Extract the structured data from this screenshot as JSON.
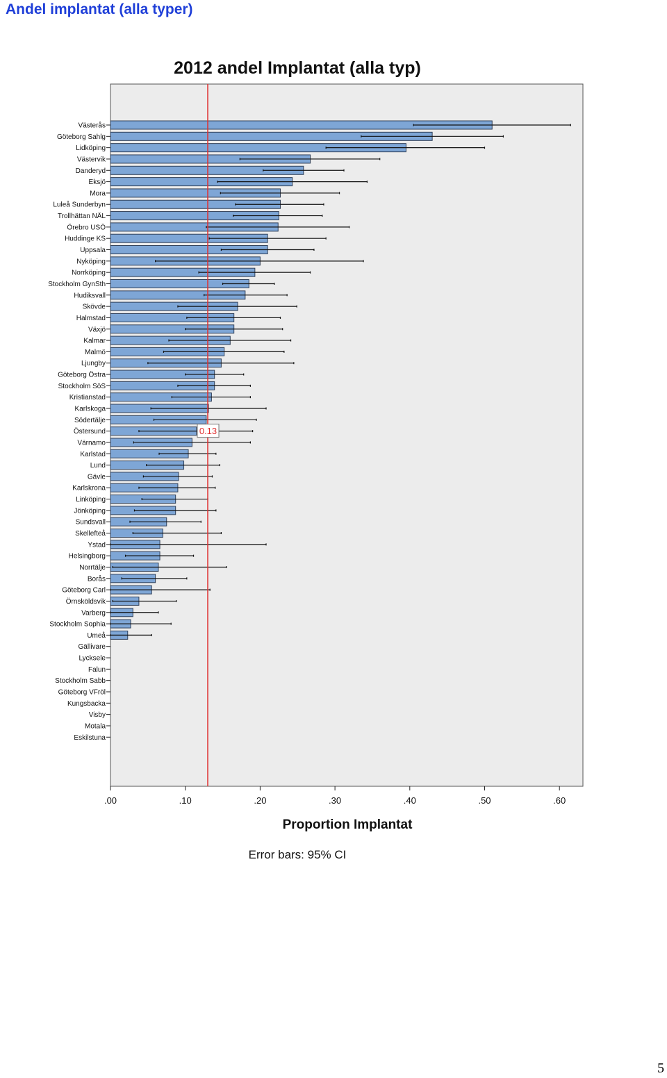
{
  "document": {
    "heading": "Andel implantat (alla typer)",
    "page_number": "5"
  },
  "colors": {
    "bar_fill": "#7ea6d6",
    "bar_stroke": "#2f3f58",
    "plot_background": "#ececec",
    "reference_line": "#e03030",
    "heading": "#1f3fd8"
  },
  "chart_data": {
    "type": "bar",
    "orientation": "horizontal",
    "title": "2012 andel Implantat (alla typ)",
    "xlabel": "Proportion Implantat",
    "ylabel": "",
    "note": "Error bars: 95% CI",
    "xlim": [
      0,
      0.63
    ],
    "x_ticks": [
      ".00",
      ".10",
      ".20",
      ".30",
      ".40",
      ".50",
      ".60"
    ],
    "grid": false,
    "reference_line": {
      "value": 0.13,
      "label": "0.13"
    },
    "categories": [
      "Västerås",
      "Göteborg Sahlg",
      "Lidköping",
      "Västervik",
      "Danderyd",
      "Eksjö",
      "Mora",
      "Luleå Sunderbyn",
      "Trollhättan NÄL",
      "Örebro USÖ",
      "Huddinge KS",
      "Uppsala",
      "Nyköping",
      "Norrköping",
      "Stockholm GynSth",
      "Hudiksvall",
      "Skövde",
      "Halmstad",
      "Växjö",
      "Kalmar",
      "Malmö",
      "Ljungby",
      "Göteborg Östra",
      "Stockholm SöS",
      "Kristianstad",
      "Karlskoga",
      "Södertälje",
      "Östersund",
      "Värnamo",
      "Karlstad",
      "Lund",
      "Gävle",
      "Karlskrona",
      "Linköping",
      "Jönköping",
      "Sundsvall",
      "Skellefteå",
      "Ystad",
      "Helsingborg",
      "Norrtälje",
      "Borås",
      "Göteborg Carl",
      "Örnsköldsvik",
      "Varberg",
      "Stockholm Sophia",
      "Umeå",
      "Gällivare",
      "Lycksele",
      "Falun",
      "Stockholm Sabb",
      "Göteborg VFröl",
      "Kungsbacka",
      "Visby",
      "Motala",
      "Eskilstuna"
    ],
    "values": [
      0.51,
      0.43,
      0.395,
      0.267,
      0.258,
      0.243,
      0.227,
      0.227,
      0.225,
      0.224,
      0.21,
      0.21,
      0.2,
      0.193,
      0.185,
      0.18,
      0.17,
      0.165,
      0.165,
      0.16,
      0.152,
      0.148,
      0.139,
      0.139,
      0.135,
      0.131,
      0.128,
      0.115,
      0.109,
      0.104,
      0.098,
      0.091,
      0.09,
      0.087,
      0.087,
      0.075,
      0.07,
      0.066,
      0.066,
      0.064,
      0.06,
      0.055,
      0.038,
      0.03,
      0.027,
      0.023,
      0,
      0,
      0,
      0,
      0,
      0,
      0,
      0,
      0
    ],
    "ci_lower": [
      0.405,
      0.335,
      0.288,
      0.173,
      0.204,
      0.143,
      0.147,
      0.167,
      0.164,
      0.128,
      0.132,
      0.148,
      0.06,
      0.118,
      0.15,
      0.125,
      0.09,
      0.102,
      0.1,
      0.078,
      0.071,
      0.05,
      0.1,
      0.09,
      0.082,
      0.054,
      0.058,
      0.038,
      0.031,
      0.065,
      0.048,
      0.044,
      0.038,
      0.042,
      0.032,
      0.026,
      0.03,
      0,
      0.02,
      0.003,
      0.015,
      0,
      0.003,
      0,
      0,
      0,
      0,
      0,
      0,
      0,
      0,
      0,
      0,
      0,
      0
    ],
    "ci_upper": [
      0.615,
      0.525,
      0.5,
      0.36,
      0.312,
      0.343,
      0.306,
      0.285,
      0.283,
      0.319,
      0.288,
      0.272,
      0.338,
      0.267,
      0.219,
      0.236,
      0.249,
      0.227,
      0.23,
      0.241,
      0.232,
      0.245,
      0.178,
      0.187,
      0.187,
      0.208,
      0.195,
      0.19,
      0.187,
      0.141,
      0.146,
      0.136,
      0.14,
      0.13,
      0.141,
      0.121,
      0.148,
      0.208,
      0.111,
      0.155,
      0.102,
      0.133,
      0.088,
      0.064,
      0.081,
      0.055,
      0,
      0,
      0,
      0,
      0,
      0,
      0,
      0,
      0
    ]
  }
}
